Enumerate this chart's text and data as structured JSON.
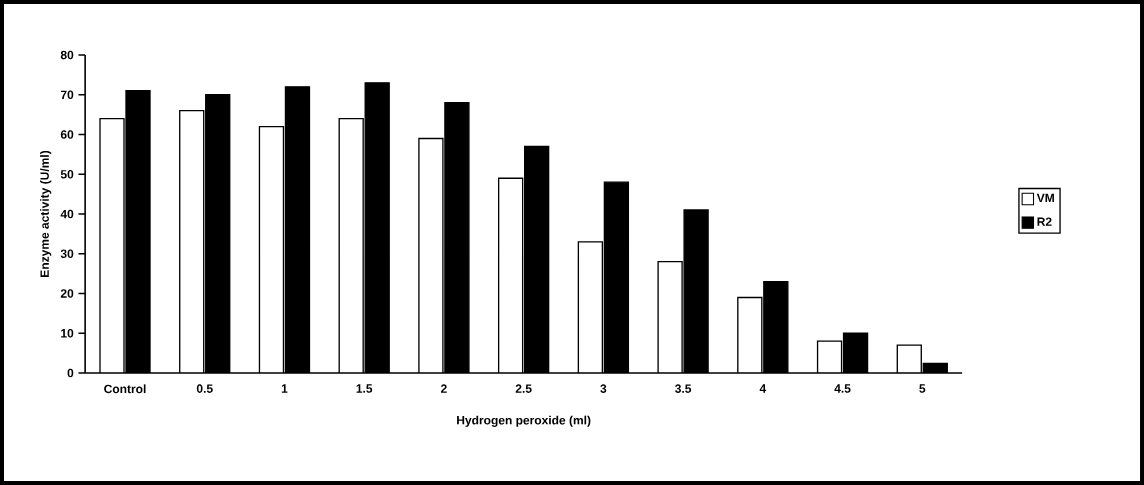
{
  "chart_data": {
    "type": "bar",
    "xlabel": "Hydrogen peroxide (ml)",
    "ylabel": "Enzyme activity (U/ml)",
    "categories": [
      "Control",
      "0.5",
      "1",
      "1.5",
      "2",
      "2.5",
      "3",
      "3.5",
      "4",
      "4.5",
      "5"
    ],
    "series": [
      {
        "name": "VM",
        "color": "#ffffff",
        "values": [
          64,
          66,
          62,
          64,
          59,
          49,
          33,
          28,
          19,
          8,
          7
        ]
      },
      {
        "name": "R2",
        "color": "#000000",
        "values": [
          71,
          70,
          72,
          73,
          68,
          57,
          48,
          41,
          23,
          10,
          2.4
        ]
      }
    ],
    "ylim": [
      0,
      80
    ],
    "yticks": [
      0,
      10,
      20,
      30,
      40,
      50,
      60,
      70,
      80
    ],
    "legend": "right"
  }
}
